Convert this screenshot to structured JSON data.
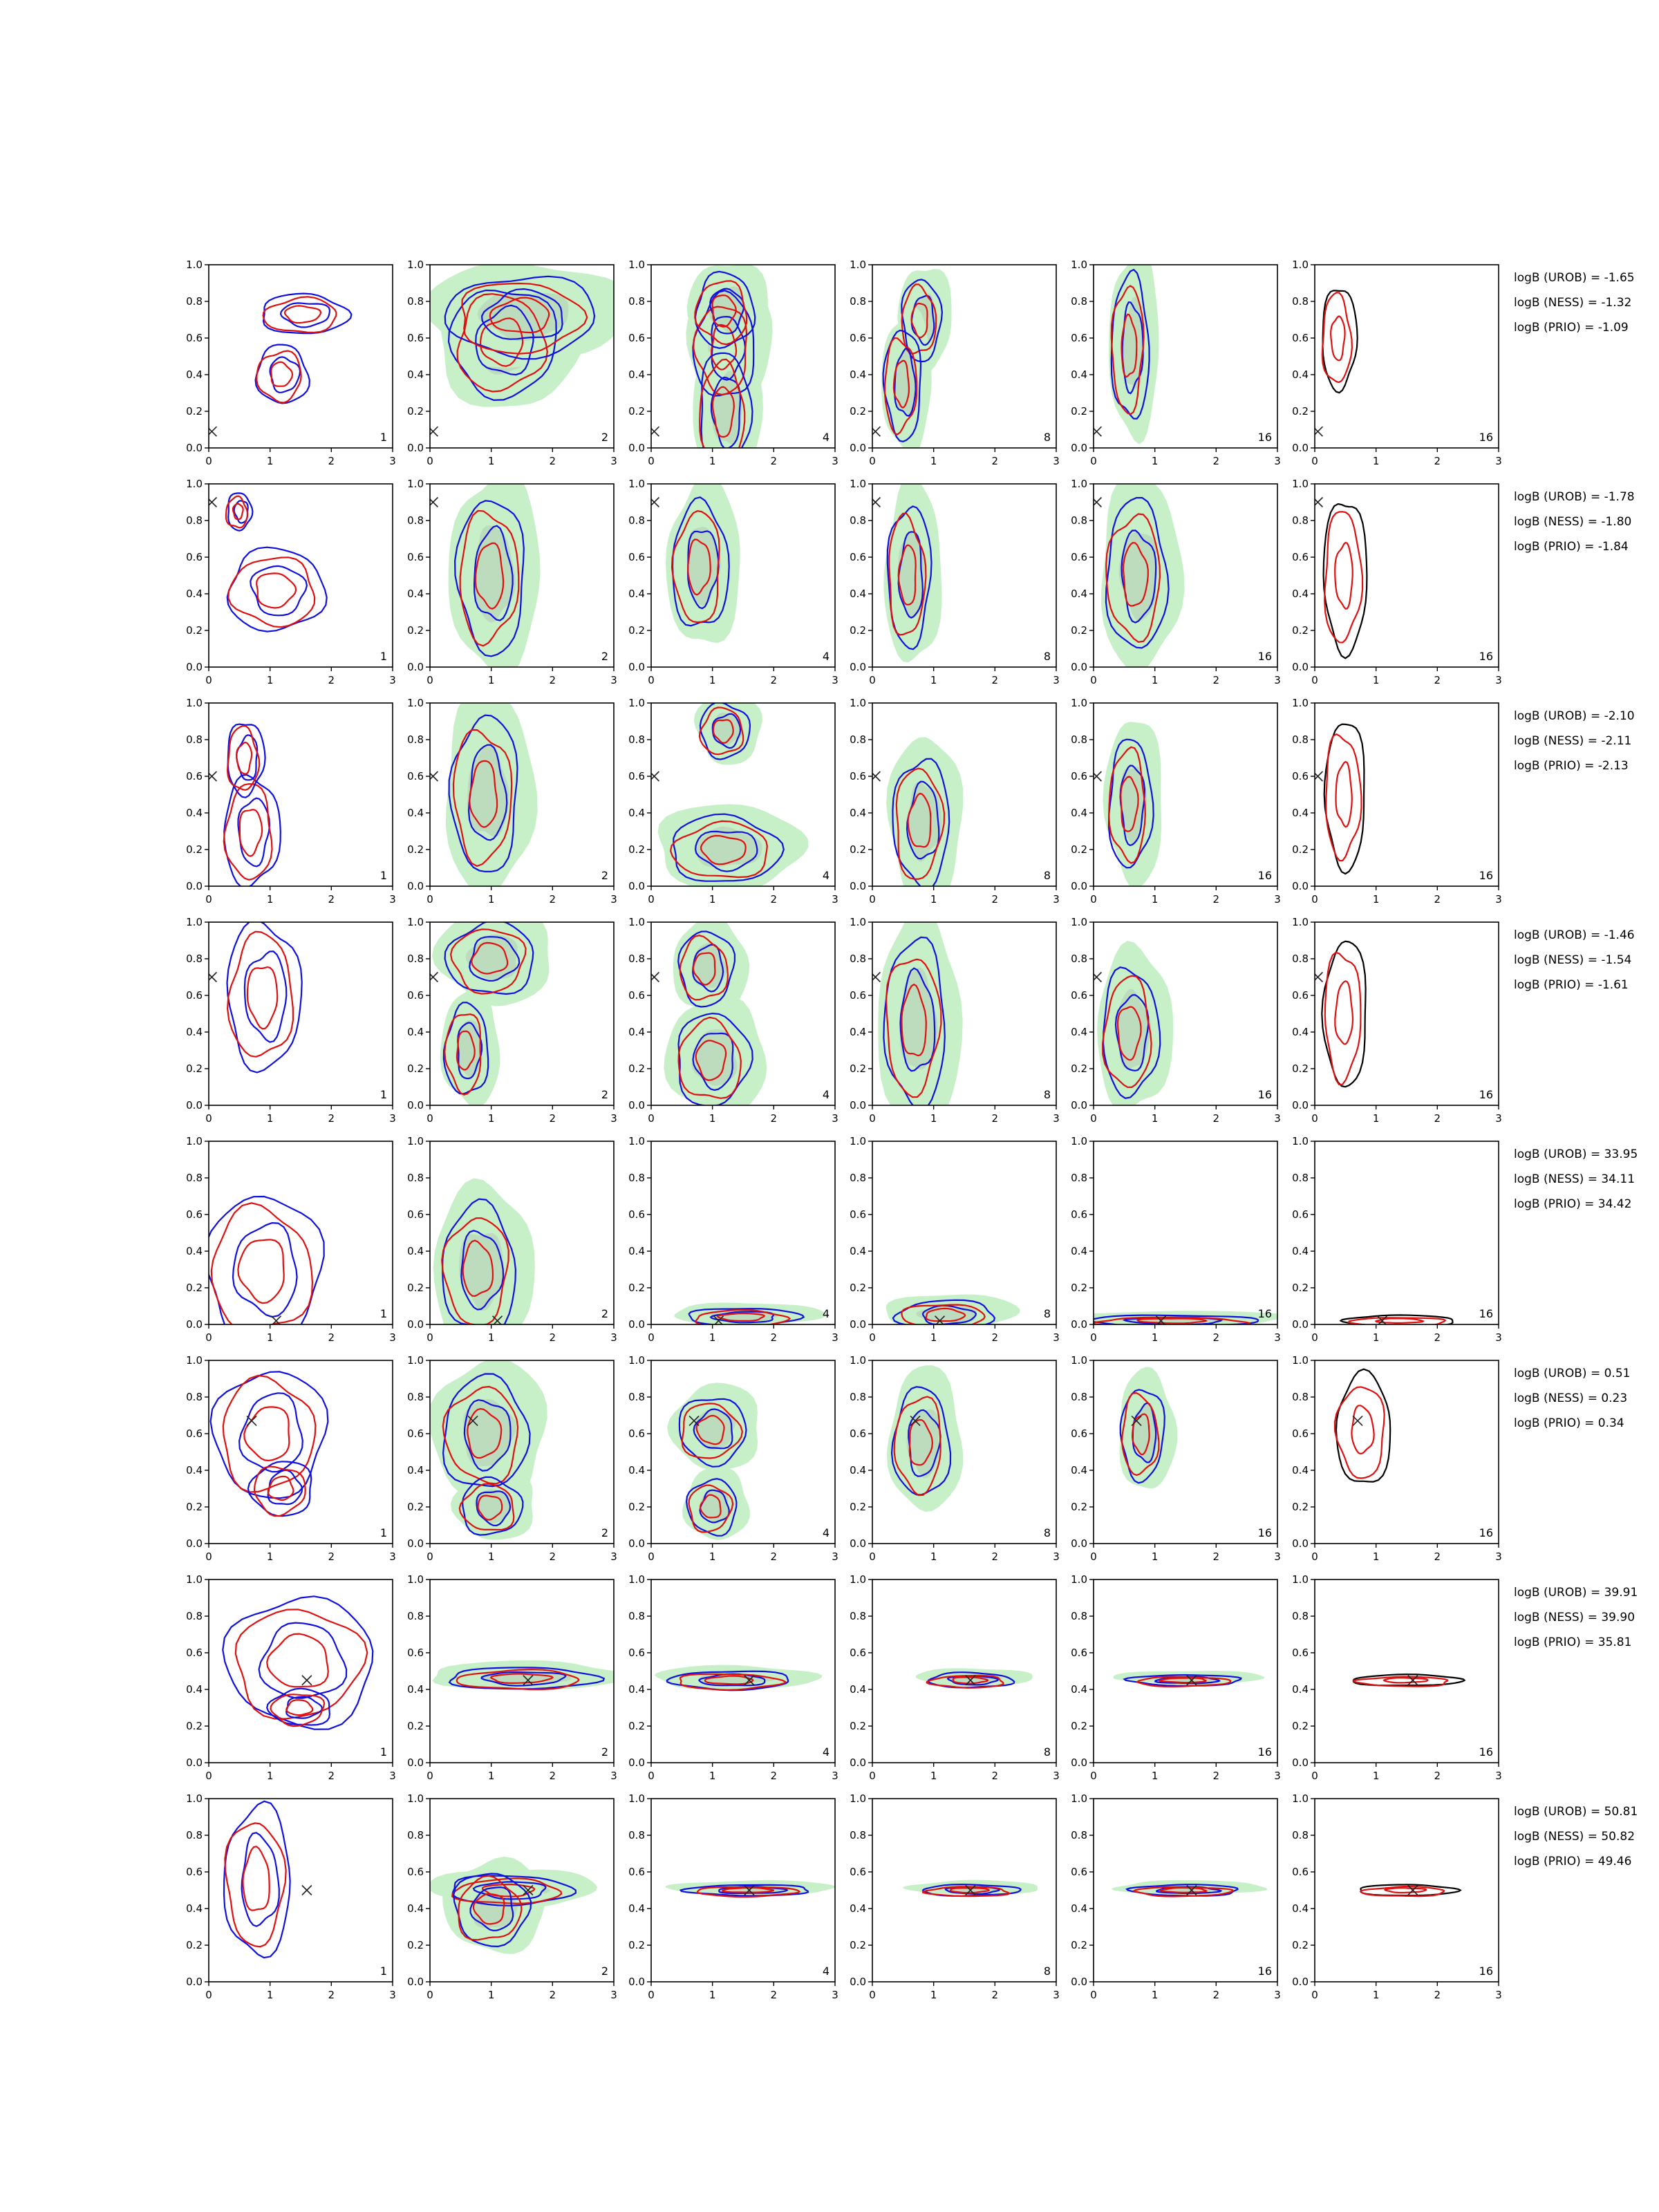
{
  "chart_data": {
    "type": "contour",
    "grid": false,
    "xlim": [
      0,
      3
    ],
    "ylim": [
      0,
      1.0
    ],
    "x_ticks": [
      "0",
      "1",
      "2",
      "3"
    ],
    "y_ticks": [
      "0.0",
      "0.2",
      "0.4",
      "0.6",
      "0.8",
      "1.0"
    ],
    "column_sample_counts": [
      "1",
      "2",
      "4",
      "8",
      "16",
      "16"
    ],
    "colors": {
      "blue": "#1010e0",
      "red": "#e01010",
      "black": "#000000",
      "fill_light": "#c8f0c8",
      "fill_dark": "#b4ccb4",
      "marker": "#222222"
    },
    "rows": [
      {
        "true_x": 0.05,
        "true_y": 0.09,
        "contours": [
          [
            [
              1.2,
              0.4,
              0.42,
              0.16
            ],
            [
              1.55,
              0.73,
              0.7,
              0.11
            ]
          ],
          [
            [
              1.2,
              0.58,
              0.85,
              0.3
            ],
            [
              1.5,
              0.72,
              1.2,
              0.22
            ]
          ],
          [
            [
              1.2,
              0.55,
              0.5,
              0.28
            ],
            [
              1.2,
              0.75,
              0.48,
              0.2
            ],
            [
              1.2,
              0.2,
              0.42,
              0.32
            ]
          ],
          [
            [
              0.8,
              0.7,
              0.32,
              0.22
            ],
            [
              0.5,
              0.35,
              0.3,
              0.3
            ]
          ],
          [
            [
              0.6,
              0.55,
              0.3,
              0.4
            ]
          ],
          [
            [
              0.4,
              0.6,
              0.28,
              0.28
            ]
          ]
        ],
        "logB": [
          "logB (UROB) = -1.65",
          "logB (NESS) = -1.32",
          "logB (PRIO) = -1.09"
        ]
      },
      {
        "true_x": 0.05,
        "true_y": 0.9,
        "contours": [
          [
            [
              1.1,
              0.42,
              0.8,
              0.22
            ],
            [
              0.5,
              0.85,
              0.2,
              0.1
            ]
          ],
          [
            [
              1.0,
              0.5,
              0.55,
              0.42
            ]
          ],
          [
            [
              0.8,
              0.55,
              0.45,
              0.35
            ]
          ],
          [
            [
              0.6,
              0.5,
              0.35,
              0.38
            ]
          ],
          [
            [
              0.7,
              0.5,
              0.5,
              0.4
            ]
          ],
          [
            [
              0.5,
              0.5,
              0.35,
              0.42
            ]
          ]
        ],
        "logB": [
          "logB (UROB) = -1.78",
          "logB (NESS) = -1.80",
          "logB (PRIO) = -1.84"
        ]
      },
      {
        "true_x": 0.05,
        "true_y": 0.6,
        "contours": [
          [
            [
              0.7,
              0.3,
              0.45,
              0.3
            ],
            [
              0.6,
              0.7,
              0.3,
              0.2
            ]
          ],
          [
            [
              0.9,
              0.5,
              0.55,
              0.42
            ]
          ],
          [
            [
              1.2,
              0.2,
              0.9,
              0.18
            ],
            [
              1.2,
              0.85,
              0.4,
              0.15
            ]
          ],
          [
            [
              0.8,
              0.35,
              0.45,
              0.35
            ]
          ],
          [
            [
              0.6,
              0.45,
              0.35,
              0.35
            ]
          ],
          [
            [
              0.5,
              0.5,
              0.33,
              0.4
            ]
          ]
        ],
        "logB": [
          "logB (UROB) = -2.10",
          "logB (NESS) = -2.11",
          "logB (PRIO) = -2.13"
        ]
      },
      {
        "true_x": 0.05,
        "true_y": 0.7,
        "contours": [
          [
            [
              0.9,
              0.6,
              0.6,
              0.4
            ]
          ],
          [
            [
              1.0,
              0.8,
              0.7,
              0.2
            ],
            [
              0.6,
              0.3,
              0.35,
              0.25
            ]
          ],
          [
            [
              1.0,
              0.25,
              0.6,
              0.25
            ],
            [
              0.9,
              0.75,
              0.45,
              0.2
            ]
          ],
          [
            [
              0.7,
              0.45,
              0.5,
              0.45
            ]
          ],
          [
            [
              0.6,
              0.4,
              0.45,
              0.35
            ]
          ],
          [
            [
              0.5,
              0.5,
              0.35,
              0.4
            ]
          ]
        ],
        "logB": [
          "logB (UROB) = -1.46",
          "logB (NESS) = -1.54",
          "logB (PRIO) = -1.61"
        ]
      },
      {
        "true_x": 1.1,
        "true_y": 0.02,
        "contours": [
          [
            [
              0.9,
              0.3,
              0.95,
              0.4
            ]
          ],
          [
            [
              0.8,
              0.3,
              0.6,
              0.35
            ]
          ],
          [
            [
              1.5,
              0.04,
              0.9,
              0.05
            ]
          ],
          [
            [
              1.2,
              0.05,
              0.8,
              0.08
            ]
          ],
          [
            [
              1.3,
              0.02,
              1.4,
              0.03
            ]
          ],
          [
            [
              1.4,
              0.02,
              0.9,
              0.03
            ]
          ]
        ],
        "logB": [
          "logB (UROB) = 33.95",
          "logB (NESS) = 34.11",
          "logB (PRIO) = 34.42"
        ]
      },
      {
        "true_x": 0.7,
        "true_y": 0.67,
        "contours": [
          [
            [
              1.0,
              0.6,
              0.9,
              0.35
            ],
            [
              1.2,
              0.3,
              0.5,
              0.15
            ]
          ],
          [
            [
              0.9,
              0.6,
              0.7,
              0.3
            ],
            [
              1.0,
              0.2,
              0.5,
              0.15
            ]
          ],
          [
            [
              1.0,
              0.62,
              0.55,
              0.18
            ],
            [
              1.0,
              0.2,
              0.4,
              0.15
            ]
          ],
          [
            [
              0.8,
              0.55,
              0.45,
              0.3
            ]
          ],
          [
            [
              0.8,
              0.6,
              0.35,
              0.25
            ]
          ],
          [
            [
              0.8,
              0.62,
              0.45,
              0.3
            ]
          ]
        ],
        "logB": [
          "logB (UROB) = 0.51",
          "logB (NESS) = 0.23",
          "logB (PRIO) = 0.34"
        ]
      },
      {
        "true_x": 1.6,
        "true_y": 0.45,
        "contours": [
          [
            [
              1.5,
              0.55,
              1.2,
              0.35
            ],
            [
              1.5,
              0.3,
              0.5,
              0.1
            ]
          ],
          [
            [
              1.5,
              0.46,
              1.2,
              0.06
            ]
          ],
          [
            [
              1.3,
              0.45,
              1.0,
              0.05
            ]
          ],
          [
            [
              1.6,
              0.45,
              0.7,
              0.04
            ]
          ],
          [
            [
              1.5,
              0.45,
              0.9,
              0.03
            ]
          ],
          [
            [
              1.5,
              0.45,
              0.9,
              0.03
            ]
          ]
        ],
        "logB": [
          "logB (UROB) = 39.91",
          "logB (NESS) = 39.90",
          "logB (PRIO) = 35.81"
        ]
      },
      {
        "true_x": 1.6,
        "true_y": 0.5,
        "contours": [
          [
            [
              0.8,
              0.55,
              0.55,
              0.4
            ]
          ],
          [
            [
              1.3,
              0.5,
              1.0,
              0.08
            ],
            [
              1.0,
              0.4,
              0.6,
              0.2
            ]
          ],
          [
            [
              1.6,
              0.5,
              1.0,
              0.03
            ]
          ],
          [
            [
              1.6,
              0.5,
              0.8,
              0.03
            ]
          ],
          [
            [
              1.5,
              0.5,
              0.9,
              0.03
            ]
          ],
          [
            [
              1.5,
              0.5,
              0.8,
              0.03
            ]
          ]
        ],
        "logB": [
          "logB (UROB) = 50.81",
          "logB (NESS) = 50.82",
          "logB (PRIO) = 49.46"
        ]
      }
    ]
  }
}
